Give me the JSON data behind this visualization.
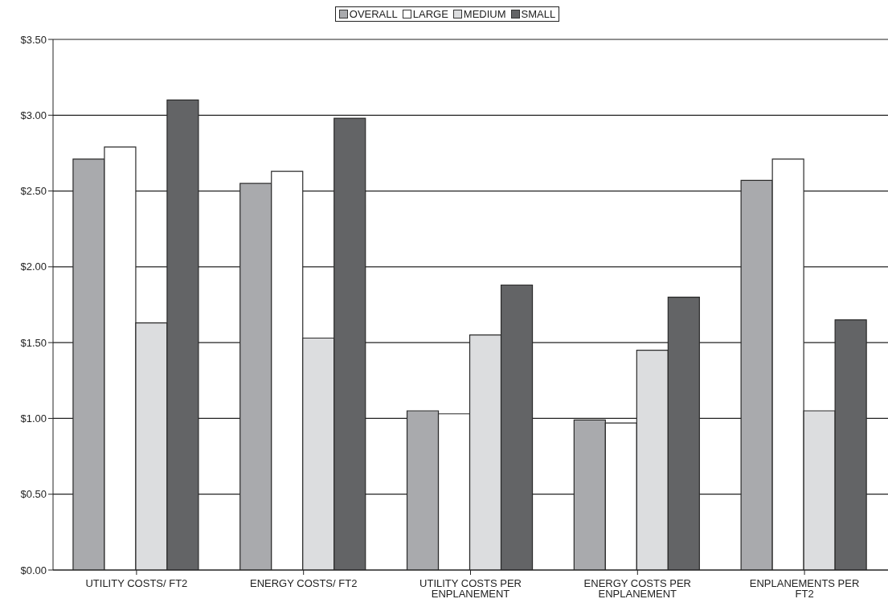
{
  "chart_data": {
    "type": "bar",
    "categories": [
      "UTILITY COSTS/ FT2",
      "ENERGY COSTS/ FT2",
      "UTILITY COSTS PER ENPLANEMENT",
      "ENERGY COSTS PER ENPLANEMENT",
      "ENPLANEMENTS PER FT2"
    ],
    "series": [
      {
        "name": "OVERALL",
        "color": "#a9aaad",
        "values": [
          2.71,
          2.55,
          1.05,
          0.99,
          2.57
        ]
      },
      {
        "name": "LARGE",
        "color": "#ffffff",
        "values": [
          2.79,
          2.63,
          1.03,
          0.97,
          2.71
        ]
      },
      {
        "name": "MEDIUM",
        "color": "#dcdddf",
        "values": [
          1.63,
          1.53,
          1.55,
          1.45,
          1.05
        ]
      },
      {
        "name": "SMALL",
        "color": "#636466",
        "values": [
          3.1,
          2.98,
          1.88,
          1.8,
          1.65
        ]
      }
    ],
    "ylim": [
      0,
      3.5
    ],
    "yticks": [
      {
        "value": 0,
        "label": "$0.00"
      },
      {
        "value": 0.5,
        "label": "$0.50"
      },
      {
        "value": 1,
        "label": "$1.00"
      },
      {
        "value": 1.5,
        "label": "$1.50"
      },
      {
        "value": 2,
        "label": "$2.00"
      },
      {
        "value": 2.5,
        "label": "$2.50"
      },
      {
        "value": 3,
        "label": "$3.00"
      },
      {
        "value": 3.5,
        "label": "$3.50"
      }
    ],
    "grid": "y",
    "legend": "top"
  }
}
